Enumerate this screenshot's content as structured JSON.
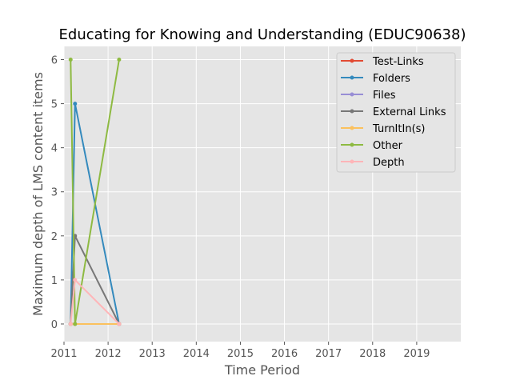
{
  "chart_data": {
    "type": "line",
    "title": "Educating for Knowing and Understanding (EDUC90638)",
    "xlabel": "Time Period",
    "ylabel": "Maximum depth of LMS content items",
    "xlim": [
      2011.0,
      2020.0
    ],
    "ylim": [
      -0.4,
      6.3
    ],
    "xticks": [
      2011,
      2012,
      2013,
      2014,
      2015,
      2016,
      2017,
      2018,
      2019
    ],
    "yticks": [
      0,
      1,
      2,
      3,
      4,
      5,
      6
    ],
    "grid": true,
    "legend_position": "top-right",
    "series": [
      {
        "name": "Test-Links",
        "color": "#E24A33",
        "x": [
          2011.15,
          2011.25,
          2012.25
        ],
        "y": [
          0,
          0,
          0
        ]
      },
      {
        "name": "Folders",
        "color": "#348ABD",
        "x": [
          2011.15,
          2011.25,
          2012.25
        ],
        "y": [
          0,
          5,
          0
        ]
      },
      {
        "name": "Files",
        "color": "#988ED5",
        "x": [
          2011.15,
          2011.25,
          2012.25
        ],
        "y": [
          0,
          0,
          0
        ]
      },
      {
        "name": "External Links",
        "color": "#777777",
        "x": [
          2011.15,
          2011.25,
          2012.25
        ],
        "y": [
          0,
          2,
          0
        ]
      },
      {
        "name": "TurnItIn(s)",
        "color": "#FBC15E",
        "x": [
          2011.15,
          2011.25,
          2012.25
        ],
        "y": [
          0,
          0,
          0
        ]
      },
      {
        "name": "Other",
        "color": "#8EBA42",
        "x": [
          2011.15,
          2011.25,
          2012.25
        ],
        "y": [
          6,
          0,
          6
        ]
      },
      {
        "name": "Depth",
        "color": "#FFB5B8",
        "x": [
          2011.15,
          2011.25,
          2012.25
        ],
        "y": [
          0,
          1,
          0
        ]
      }
    ]
  }
}
